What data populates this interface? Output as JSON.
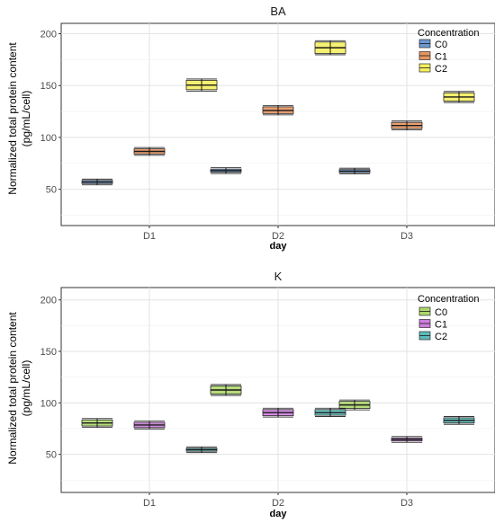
{
  "chart_data": [
    {
      "type": "box",
      "title": "BA",
      "xlabel": "day",
      "ylabel_lines": [
        "Normalized total protein content",
        "(pg/mL/cell)"
      ],
      "categories": [
        "D1",
        "D2",
        "D3"
      ],
      "ylim": [
        15,
        210
      ],
      "yticks": [
        50,
        100,
        150,
        200
      ],
      "grid": true,
      "legend": {
        "title": "Concentration",
        "position": "top-right"
      },
      "series": [
        {
          "name": "C0",
          "color": "#4a7fc4",
          "values": [
            {
              "q1": 55.5,
              "median": 57,
              "q3": 58.5
            },
            {
              "q1": 66.5,
              "median": 68,
              "q3": 69.5
            },
            {
              "q1": 66,
              "median": 67.5,
              "q3": 69
            }
          ]
        },
        {
          "name": "C1",
          "color": "#e07b39",
          "values": [
            {
              "q1": 84,
              "median": 86.5,
              "q3": 89
            },
            {
              "q1": 123,
              "median": 126,
              "q3": 129.5
            },
            {
              "q1": 108.5,
              "median": 111.5,
              "q3": 114.5
            }
          ]
        },
        {
          "name": "C2",
          "color": "#f2ec3a",
          "values": [
            {
              "q1": 146,
              "median": 150.5,
              "q3": 155
            },
            {
              "q1": 181,
              "median": 186.5,
              "q3": 192
            },
            {
              "q1": 135,
              "median": 139,
              "q3": 143
            }
          ]
        }
      ]
    },
    {
      "type": "box",
      "title": "K",
      "xlabel": "day",
      "ylabel_lines": [
        "Normalized total protein content",
        "(pg/mL/cell)"
      ],
      "categories": [
        "D1",
        "D2",
        "D3"
      ],
      "ylim": [
        13,
        212
      ],
      "yticks": [
        50,
        100,
        150,
        200
      ],
      "grid": true,
      "legend": {
        "title": "Concentration",
        "position": "top-right"
      },
      "series": [
        {
          "name": "C0",
          "color": "#9acd4a",
          "values": [
            {
              "q1": 77.5,
              "median": 80.5,
              "q3": 83.5
            },
            {
              "q1": 108.5,
              "median": 112.5,
              "q3": 116.5
            },
            {
              "q1": 94.5,
              "median": 98,
              "q3": 101.5
            }
          ]
        },
        {
          "name": "C1",
          "color": "#c25fd6",
          "values": [
            {
              "q1": 76,
              "median": 78.5,
              "q3": 81
            },
            {
              "q1": 87.5,
              "median": 90.5,
              "q3": 93.5
            },
            {
              "q1": 63,
              "median": 64.5,
              "q3": 66
            }
          ]
        },
        {
          "name": "C2",
          "color": "#33aaa6",
          "values": [
            {
              "q1": 53,
              "median": 54.5,
              "q3": 56
            },
            {
              "q1": 88,
              "median": 90.5,
              "q3": 93.5
            },
            {
              "q1": 80.5,
              "median": 83,
              "q3": 85.5
            }
          ]
        }
      ]
    }
  ]
}
